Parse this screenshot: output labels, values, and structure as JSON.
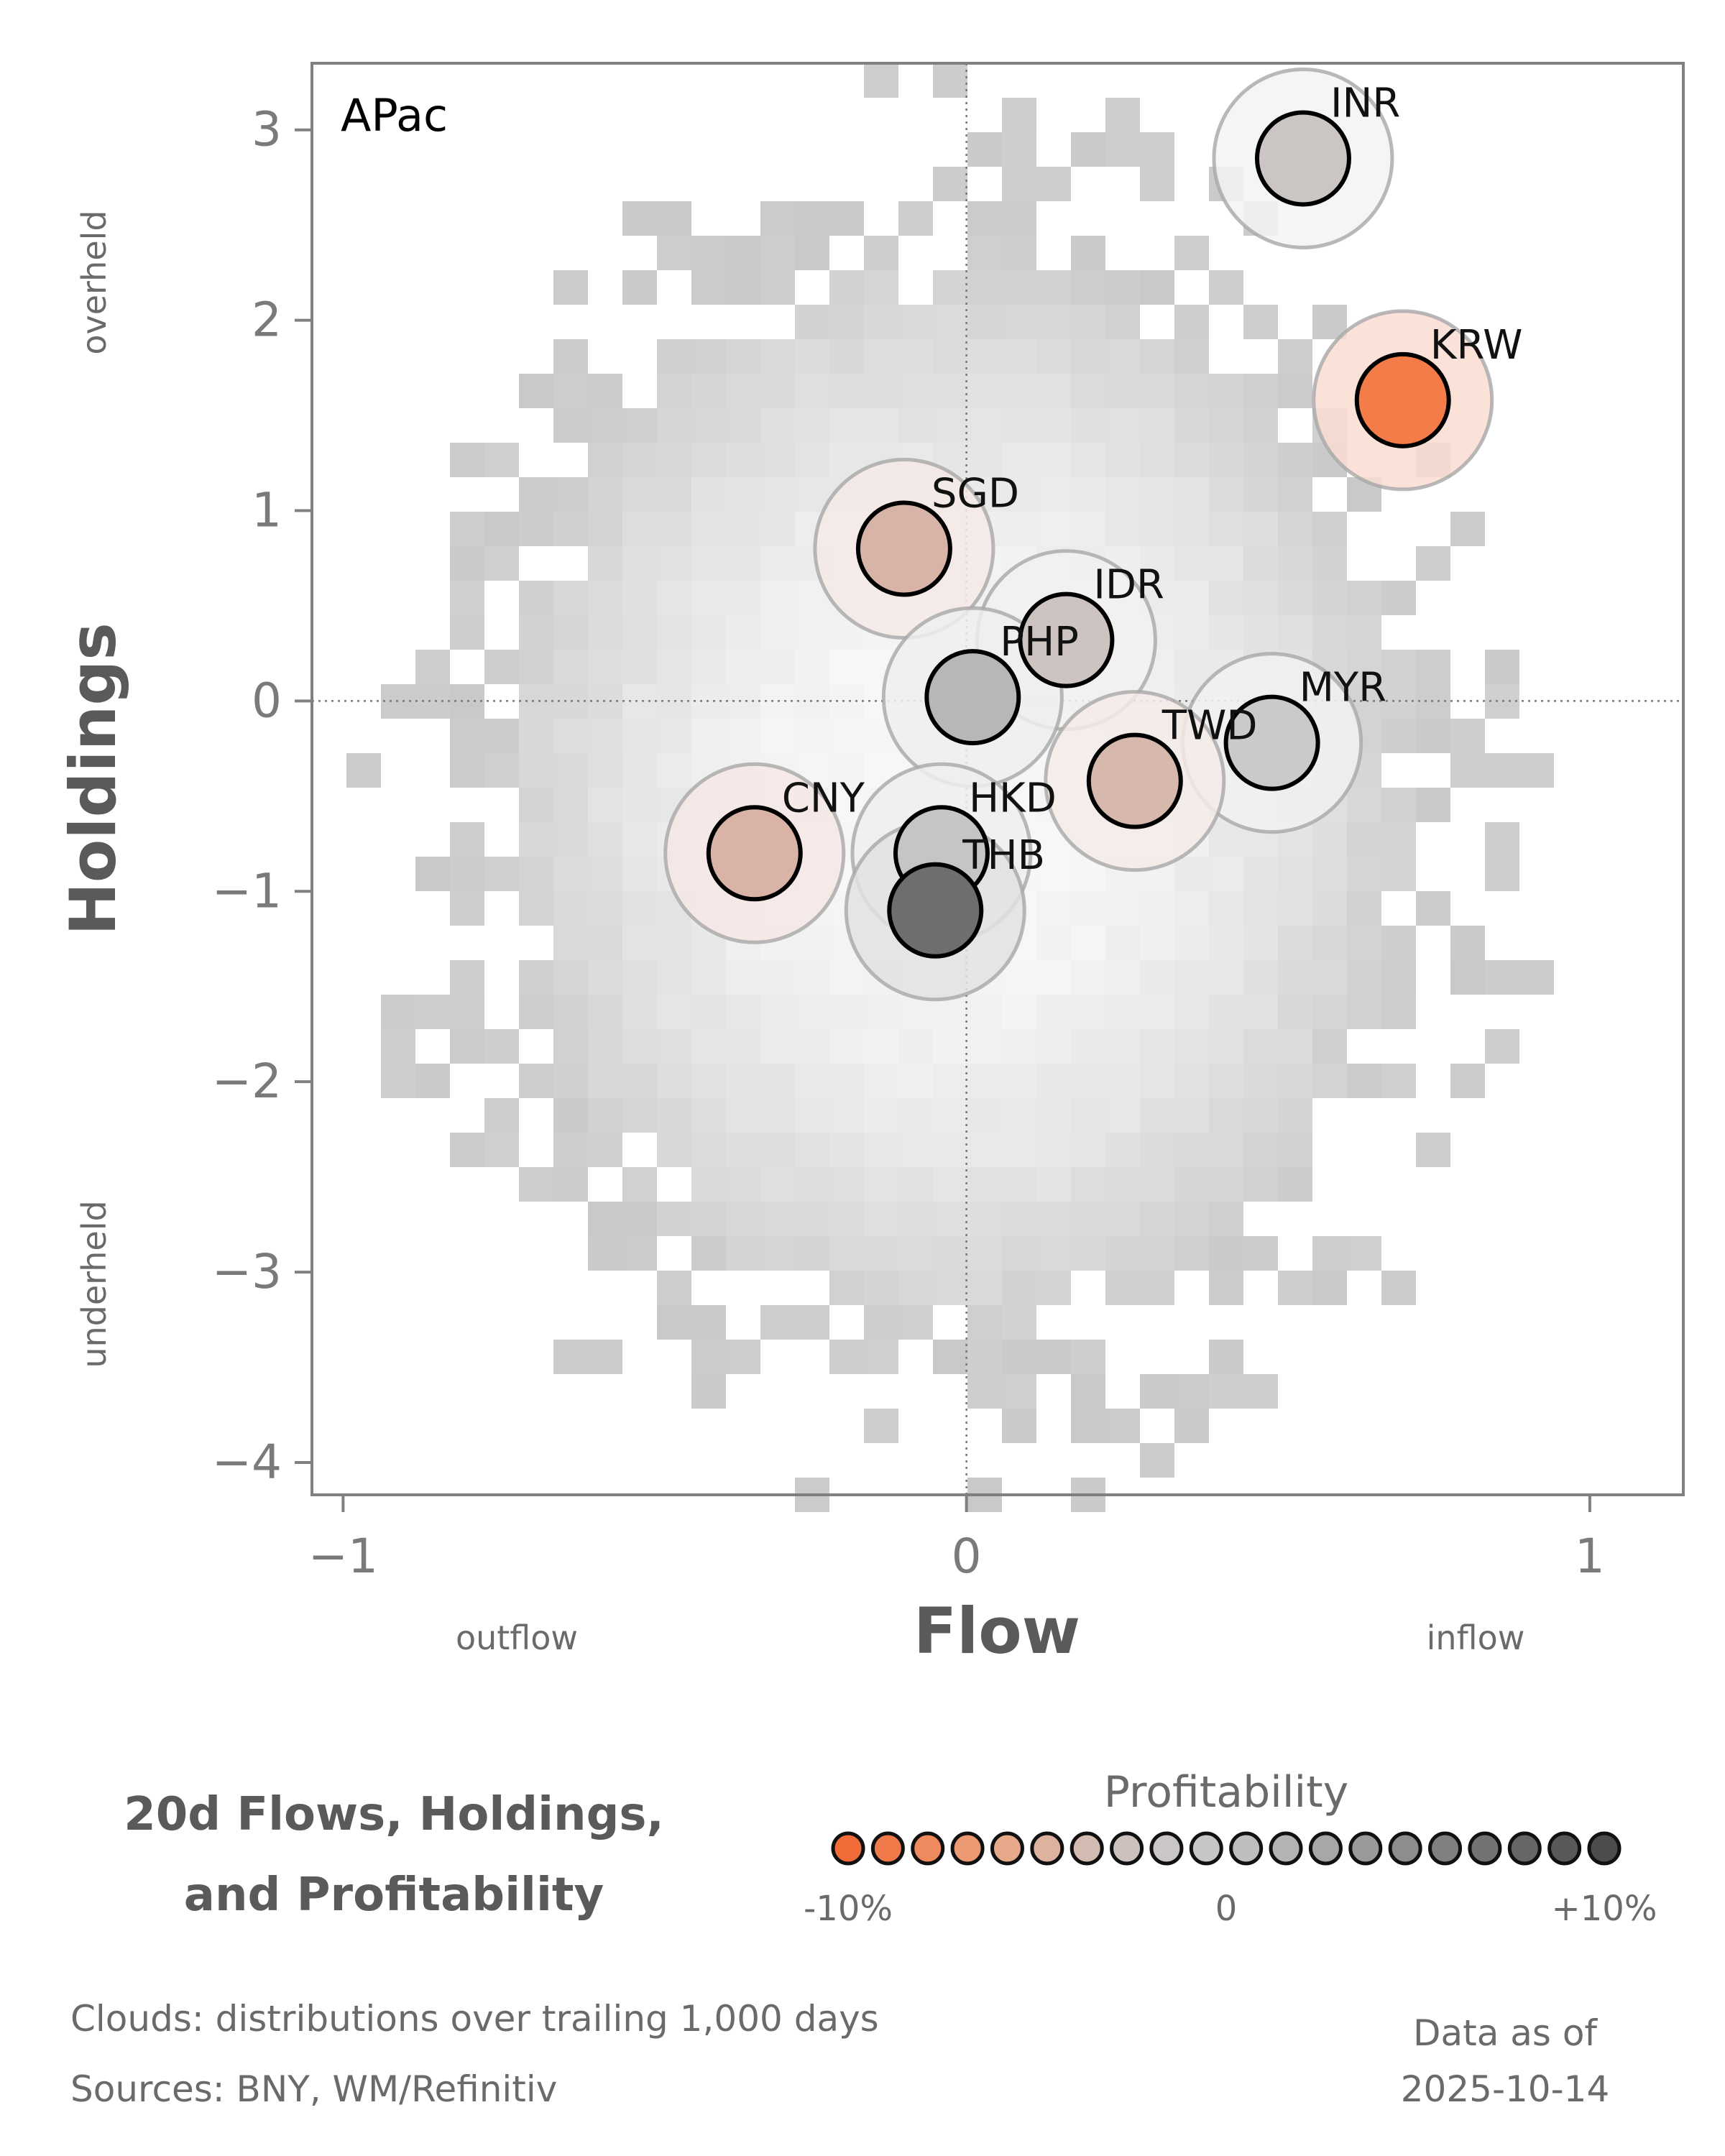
{
  "chart_data": {
    "type": "scatter",
    "panel_label": "APac",
    "xlabel": "Flow",
    "ylabel": "Holdings",
    "x_note_left": "outflow",
    "x_note_right": "inflow",
    "y_note_top": "overheld",
    "y_note_bottom": "underheld",
    "xlim": [
      -1.05,
      1.15
    ],
    "ylim": [
      -4.17,
      3.35
    ],
    "xticks": [
      {
        "value": -1,
        "label": "−1"
      },
      {
        "value": 0,
        "label": "0"
      },
      {
        "value": 1,
        "label": "1"
      }
    ],
    "yticks": [
      {
        "value": 3,
        "label": "3"
      },
      {
        "value": 2,
        "label": "2"
      },
      {
        "value": 1,
        "label": "1"
      },
      {
        "value": 0,
        "label": "0"
      },
      {
        "value": -1,
        "label": "−1"
      },
      {
        "value": -2,
        "label": "−2"
      },
      {
        "value": -3,
        "label": "−3"
      },
      {
        "value": -4,
        "label": "−4"
      }
    ],
    "reference_lines": {
      "x": 0,
      "y": 0
    },
    "background": "2D histogram cloud of trailing 1,000-day distribution, grey shades",
    "points": [
      {
        "name": "INR",
        "x": 0.54,
        "y": 2.85,
        "profitability": 0.01,
        "color": "#cbc5c3",
        "halo_color": "#f4f3f3"
      },
      {
        "name": "KRW",
        "x": 0.7,
        "y": 1.58,
        "profitability": -0.1,
        "color": "#f47c48",
        "halo_color": "#f9ddd2"
      },
      {
        "name": "SGD",
        "x": -0.1,
        "y": 0.8,
        "profitability": -0.04,
        "color": "#d7b4a7",
        "halo_color": "#f4e9e5"
      },
      {
        "name": "IDR",
        "x": 0.16,
        "y": 0.32,
        "profitability": 0.0,
        "color": "#cdc4c2",
        "halo_color": "#f3f1f0"
      },
      {
        "name": "PHP",
        "x": 0.01,
        "y": 0.02,
        "profitability": 0.03,
        "color": "#b6b8b8",
        "halo_color": "#eeeeee"
      },
      {
        "name": "MYR",
        "x": 0.49,
        "y": -0.22,
        "profitability": 0.02,
        "color": "#c9cacb",
        "halo_color": "#f1f1f1"
      },
      {
        "name": "TWD",
        "x": 0.27,
        "y": -0.42,
        "profitability": -0.04,
        "color": "#d6b8ac",
        "halo_color": "#f5ebe7"
      },
      {
        "name": "CNY",
        "x": -0.34,
        "y": -0.8,
        "profitability": -0.05,
        "color": "#d9b3a5",
        "halo_color": "#f5e8e4"
      },
      {
        "name": "HKD",
        "x": -0.04,
        "y": -0.8,
        "profitability": 0.02,
        "color": "#c4c5c6",
        "halo_color": "#efefef"
      },
      {
        "name": "THB",
        "x": -0.05,
        "y": -1.1,
        "profitability": 0.08,
        "color": "#6e6e6e",
        "halo_color": "#e2e2e2"
      }
    ],
    "legend": {
      "title_lines": [
        "20d Flows, Holdings,",
        "and Profitability"
      ],
      "heading": "Profitability",
      "tick_labels": [
        "-10%",
        "0",
        "+10%"
      ],
      "colors": [
        "#f26c3a",
        "#f07a4a",
        "#ee8a5e",
        "#eb9a73",
        "#e6a98b",
        "#ddb3a0",
        "#d4bbb1",
        "#ccc1bd",
        "#c9c6c5",
        "#c5c6c7",
        "#bdbebf",
        "#b2b3b4",
        "#a6a7a8",
        "#999a9b",
        "#8c8d8e",
        "#7f8081",
        "#727374",
        "#656667",
        "#58595a",
        "#4b4c4d"
      ]
    },
    "footnotes": {
      "clouds": "Clouds:  distributions over trailing 1,000 days",
      "sources": "Sources:  BNY, WM/Refinitiv",
      "asof_label": "Data as of",
      "asof_date": "2025-10-14"
    }
  }
}
